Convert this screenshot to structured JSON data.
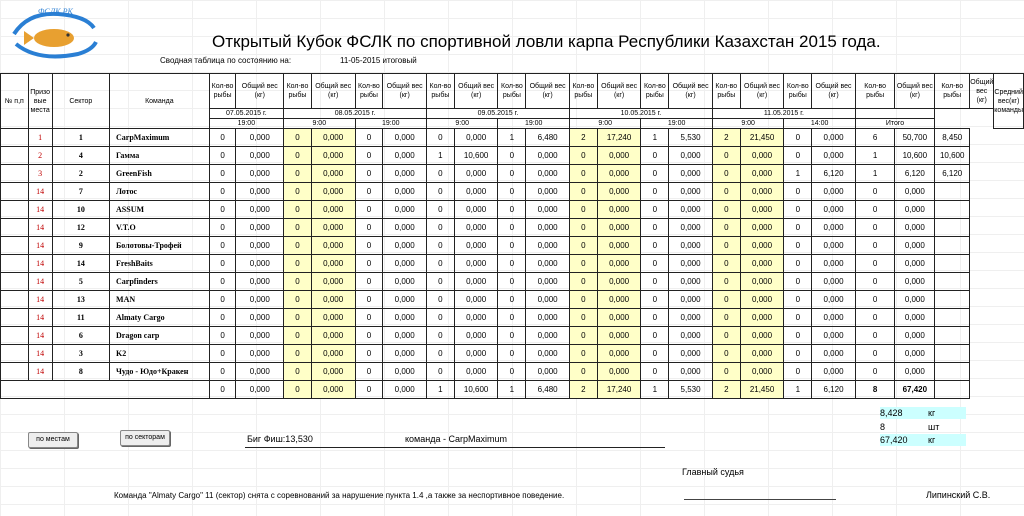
{
  "logo_text": "ФСЛК РК",
  "title": "Открытый Кубок ФСЛК по спортивной ловли карпа Республики Казахстан 2015 года.",
  "summary_label": "Сводная таблица по состоянию на:",
  "as_of": "11-05-2015 итоговый",
  "headers": {
    "np": "№ п,п",
    "place": "Призо вые места",
    "sector": "Сектор",
    "team": "Команда",
    "cnt": "Кол-во рыбы",
    "wt_first": "Общий вес (кг)",
    "wt": "Общий вес (кг)",
    "avg": "Средний вес(кг) команды"
  },
  "dates": [
    "07.05.2015 г.",
    "08.05.2015 г.",
    "09.05.2015 г.",
    "10.05.2015 г.",
    "11.05.2015 г."
  ],
  "times": [
    "19:00",
    "9:00",
    "19:00",
    "9:00",
    "19:00",
    "9:00",
    "19:00",
    "9:00",
    "14:00"
  ],
  "total_label": "Итого",
  "rows": [
    {
      "place": "1",
      "sector": "1",
      "team": "CarpMaximum",
      "v": [
        "0",
        "0,000",
        "0",
        "0,000",
        "0",
        "0,000",
        "0",
        "0,000",
        "1",
        "6,480",
        "2",
        "17,240",
        "1",
        "5,530",
        "2",
        "21,450",
        "0",
        "0,000",
        "6",
        "50,700",
        "8,450"
      ]
    },
    {
      "place": "2",
      "sector": "4",
      "team": "Гамма",
      "v": [
        "0",
        "0,000",
        "0",
        "0,000",
        "0",
        "0,000",
        "1",
        "10,600",
        "0",
        "0,000",
        "0",
        "0,000",
        "0",
        "0,000",
        "0",
        "0,000",
        "0",
        "0,000",
        "1",
        "10,600",
        "10,600"
      ]
    },
    {
      "place": "3",
      "sector": "2",
      "team": "GreenFish",
      "v": [
        "0",
        "0,000",
        "0",
        "0,000",
        "0",
        "0,000",
        "0",
        "0,000",
        "0",
        "0,000",
        "0",
        "0,000",
        "0",
        "0,000",
        "0",
        "0,000",
        "1",
        "6,120",
        "1",
        "6,120",
        "6,120"
      ]
    },
    {
      "place": "14",
      "sector": "7",
      "team": "Лотос",
      "v": [
        "0",
        "0,000",
        "0",
        "0,000",
        "0",
        "0,000",
        "0",
        "0,000",
        "0",
        "0,000",
        "0",
        "0,000",
        "0",
        "0,000",
        "0",
        "0,000",
        "0",
        "0,000",
        "0",
        "0,000",
        ""
      ]
    },
    {
      "place": "14",
      "sector": "10",
      "team": "ASSUM",
      "v": [
        "0",
        "0,000",
        "0",
        "0,000",
        "0",
        "0,000",
        "0",
        "0,000",
        "0",
        "0,000",
        "0",
        "0,000",
        "0",
        "0,000",
        "0",
        "0,000",
        "0",
        "0,000",
        "0",
        "0,000",
        ""
      ]
    },
    {
      "place": "14",
      "sector": "12",
      "team": "V.T.O",
      "v": [
        "0",
        "0,000",
        "0",
        "0,000",
        "0",
        "0,000",
        "0",
        "0,000",
        "0",
        "0,000",
        "0",
        "0,000",
        "0",
        "0,000",
        "0",
        "0,000",
        "0",
        "0,000",
        "0",
        "0,000",
        ""
      ]
    },
    {
      "place": "14",
      "sector": "9",
      "team": "Болотовы-Трофей",
      "v": [
        "0",
        "0,000",
        "0",
        "0,000",
        "0",
        "0,000",
        "0",
        "0,000",
        "0",
        "0,000",
        "0",
        "0,000",
        "0",
        "0,000",
        "0",
        "0,000",
        "0",
        "0,000",
        "0",
        "0,000",
        ""
      ]
    },
    {
      "place": "14",
      "sector": "14",
      "team": "FreshBaits",
      "v": [
        "0",
        "0,000",
        "0",
        "0,000",
        "0",
        "0,000",
        "0",
        "0,000",
        "0",
        "0,000",
        "0",
        "0,000",
        "0",
        "0,000",
        "0",
        "0,000",
        "0",
        "0,000",
        "0",
        "0,000",
        ""
      ]
    },
    {
      "place": "14",
      "sector": "5",
      "team": "Carpfinders",
      "v": [
        "0",
        "0,000",
        "0",
        "0,000",
        "0",
        "0,000",
        "0",
        "0,000",
        "0",
        "0,000",
        "0",
        "0,000",
        "0",
        "0,000",
        "0",
        "0,000",
        "0",
        "0,000",
        "0",
        "0,000",
        ""
      ]
    },
    {
      "place": "14",
      "sector": "13",
      "team": "MAN",
      "v": [
        "0",
        "0,000",
        "0",
        "0,000",
        "0",
        "0,000",
        "0",
        "0,000",
        "0",
        "0,000",
        "0",
        "0,000",
        "0",
        "0,000",
        "0",
        "0,000",
        "0",
        "0,000",
        "0",
        "0,000",
        ""
      ]
    },
    {
      "place": "14",
      "sector": "11",
      "team": "Almaty Cargo",
      "v": [
        "0",
        "0,000",
        "0",
        "0,000",
        "0",
        "0,000",
        "0",
        "0,000",
        "0",
        "0,000",
        "0",
        "0,000",
        "0",
        "0,000",
        "0",
        "0,000",
        "0",
        "0,000",
        "0",
        "0,000",
        ""
      ]
    },
    {
      "place": "14",
      "sector": "6",
      "team": "Dragon carp",
      "v": [
        "0",
        "0,000",
        "0",
        "0,000",
        "0",
        "0,000",
        "0",
        "0,000",
        "0",
        "0,000",
        "0",
        "0,000",
        "0",
        "0,000",
        "0",
        "0,000",
        "0",
        "0,000",
        "0",
        "0,000",
        ""
      ]
    },
    {
      "place": "14",
      "sector": "3",
      "team": "K2",
      "v": [
        "0",
        "0,000",
        "0",
        "0,000",
        "0",
        "0,000",
        "0",
        "0,000",
        "0",
        "0,000",
        "0",
        "0,000",
        "0",
        "0,000",
        "0",
        "0,000",
        "0",
        "0,000",
        "0",
        "0,000",
        ""
      ]
    },
    {
      "place": "14",
      "sector": "8",
      "team": "Чудо - Юдо+Кракен",
      "v": [
        "0",
        "0,000",
        "0",
        "0,000",
        "0",
        "0,000",
        "0",
        "0,000",
        "0",
        "0,000",
        "0",
        "0,000",
        "0",
        "0,000",
        "0",
        "0,000",
        "0",
        "0,000",
        "0",
        "0,000",
        ""
      ]
    }
  ],
  "totals": [
    "0",
    "0,000",
    "0",
    "0,000",
    "0",
    "0,000",
    "1",
    "10,600",
    "1",
    "6,480",
    "2",
    "17,240",
    "1",
    "5,530",
    "2",
    "21,450",
    "1",
    "6,120",
    "8",
    "67,420",
    ""
  ],
  "buttons": {
    "by_places": "по местам",
    "by_sectors": "по секторам"
  },
  "big_fish": "Биг Фиш:13,530",
  "big_fish_team": "команда - CarpMaximum",
  "stats": [
    {
      "value": "8,428",
      "unit": "кг"
    },
    {
      "value": "8",
      "unit": "шт"
    },
    {
      "value": "67,420",
      "unit": "кг"
    }
  ],
  "judge_label": "Главный судья",
  "judge_name": "Липинский С.В.",
  "note": "Команда \"Almaty Cargo\" 11 (сектор) снята с соревнований за нарушение пункта 1.4 ,а также за неспортивное поведение.",
  "colors": {
    "place_red": "#c00000",
    "highlight_yellow": "#ffffc8",
    "stat_cyan": "#ccffff",
    "logo_blue": "#2a7fd4"
  }
}
